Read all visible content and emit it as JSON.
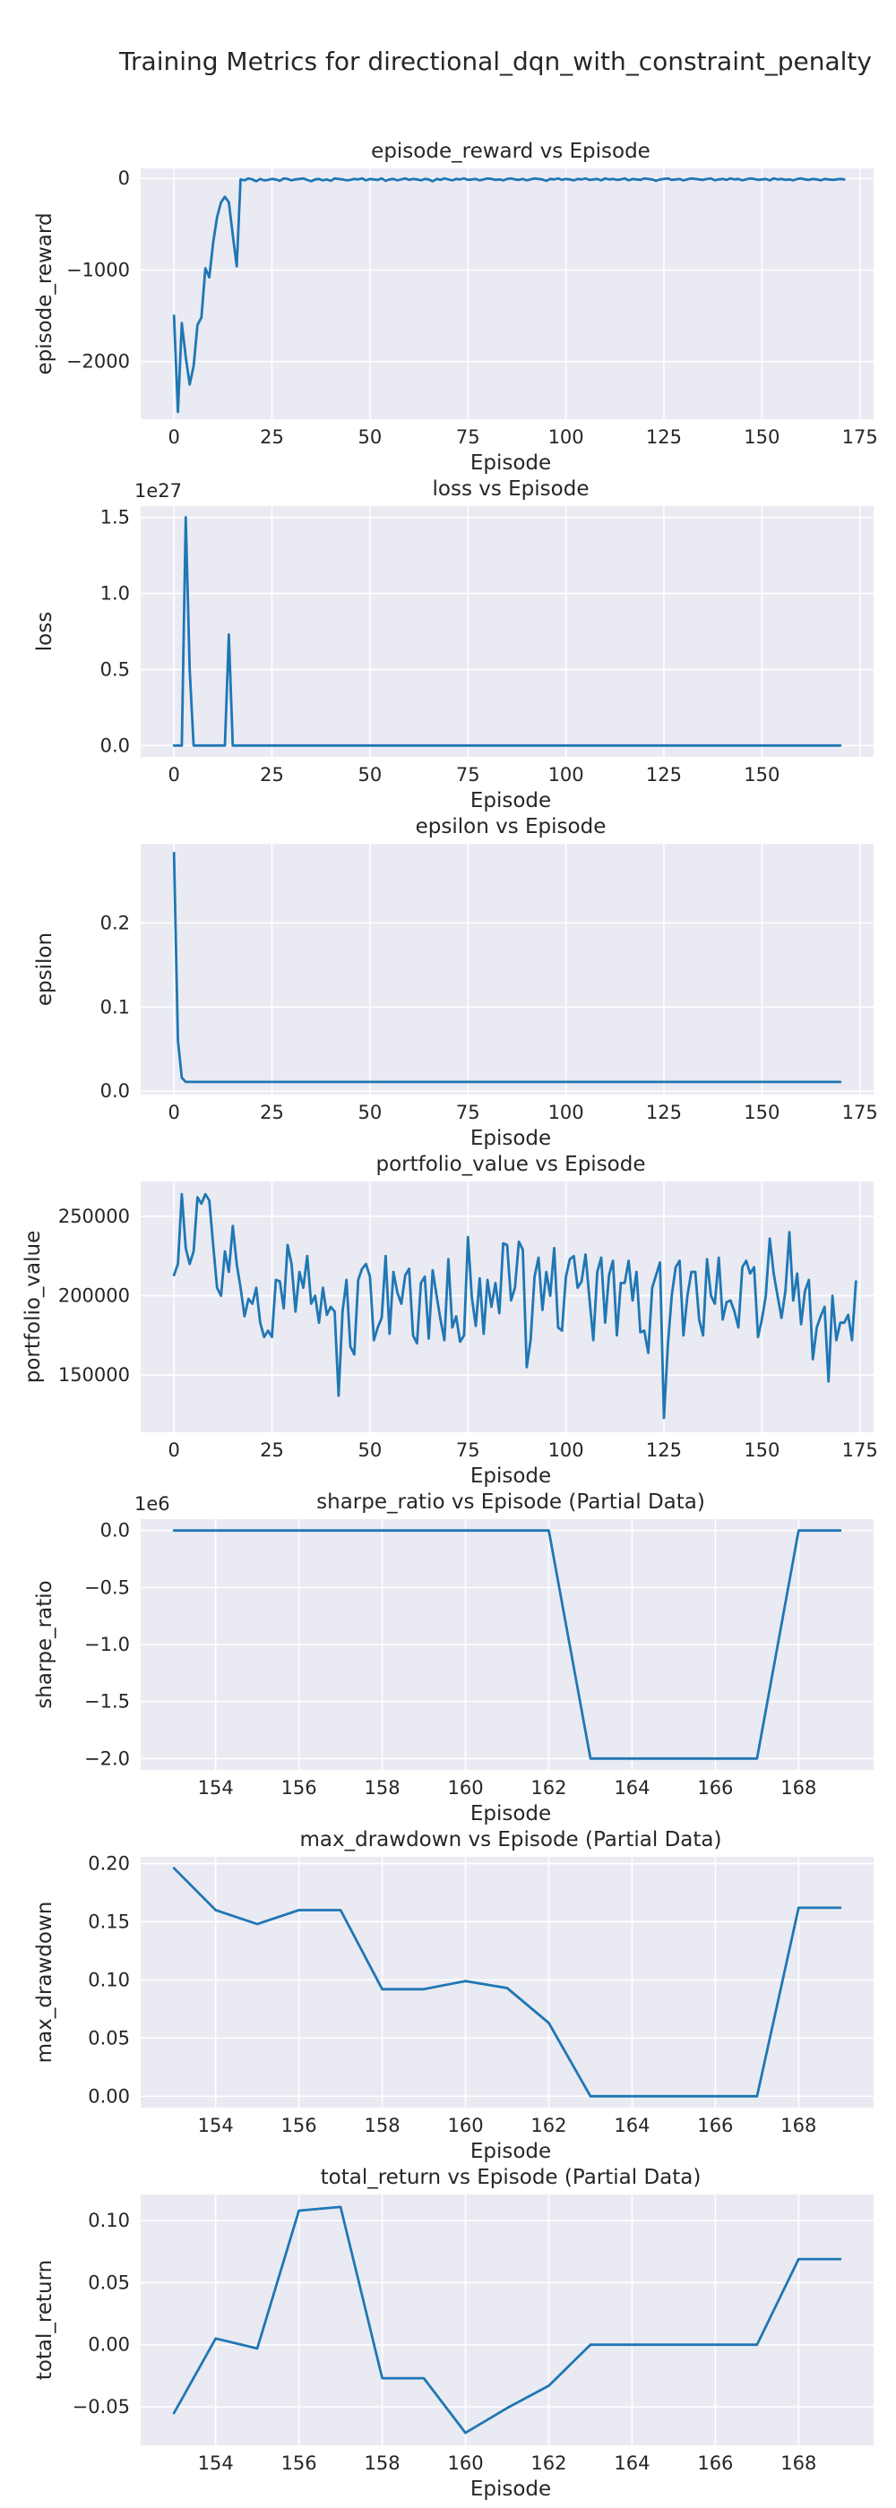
{
  "figure": {
    "title": "Training Metrics for directional_dqn_with_constraint_penalty"
  },
  "colors": {
    "series": "#1f77b4",
    "background": "#eaeaf2",
    "grid": "#ffffff",
    "text": "#262626"
  },
  "chart_data": [
    {
      "type": "line",
      "title": "episode_reward vs Episode",
      "xlabel": "Episode",
      "ylabel": "episode_reward",
      "xlim": [
        -8.5,
        178.5
      ],
      "ylim": [
        -2630,
        110
      ],
      "xticks": [
        0,
        25,
        50,
        75,
        100,
        125,
        150,
        175
      ],
      "yticks": [
        0,
        -1000,
        -2000
      ],
      "ytick_labels": [
        "0",
        "−1000",
        "−2000"
      ],
      "offset_text": "",
      "x_start": 0,
      "values": [
        -1500,
        -2550,
        -1580,
        -1950,
        -2250,
        -2050,
        -1600,
        -1520,
        -980,
        -1080,
        -700,
        -420,
        -260,
        -200,
        -260,
        -620,
        -960,
        -10,
        -20,
        0,
        -10,
        -30,
        -5,
        -20,
        -15,
        -5,
        -10,
        -25,
        0,
        -5,
        -20,
        -10,
        -5,
        0,
        -15,
        -30,
        -10,
        -5,
        -20,
        -10,
        -25,
        0,
        -5,
        -10,
        -20,
        -15,
        -5,
        -10,
        0,
        -20,
        -5,
        -10,
        -15,
        0,
        -25,
        -10,
        -5,
        -20,
        -10,
        0,
        -15,
        -5,
        -10,
        -20,
        -5,
        -10,
        -30,
        -5,
        -15,
        0,
        -10,
        -20,
        -5,
        -10,
        0,
        -15,
        -10,
        -5,
        -20,
        -10,
        0,
        -5,
        -15,
        -10,
        -20,
        -5,
        0,
        -10,
        -15,
        -5,
        -20,
        -10,
        0,
        -5,
        -10,
        -25,
        -5,
        -10,
        0,
        -15,
        -5,
        -10,
        -20,
        -5,
        -10,
        0,
        -15,
        -10,
        -5,
        -20,
        0,
        -10,
        -5,
        -15,
        -10,
        0,
        -20,
        -5,
        -10,
        -15,
        0,
        -5,
        -10,
        -25,
        -10,
        -5,
        0,
        -15,
        -10,
        -5,
        -20,
        -10,
        0,
        -5,
        -10,
        -15,
        -5,
        0,
        -20,
        -10,
        -5,
        -15,
        0,
        -10,
        -5,
        -20,
        -10,
        0,
        -5,
        -15,
        -10,
        -5,
        -20,
        0,
        -10,
        -5,
        -15,
        -10,
        -20,
        -5,
        0,
        -10,
        -15,
        -5,
        -10,
        -20,
        -5,
        -10,
        -15,
        -10,
        -5,
        -10
      ]
    },
    {
      "type": "line",
      "title": "loss vs Episode",
      "xlabel": "Episode",
      "ylabel": "loss",
      "xlim": [
        -8.5,
        178.5
      ],
      "ylim": [
        -0.075,
        1.575
      ],
      "xticks": [
        0,
        25,
        50,
        75,
        100,
        125,
        150,
        175
      ],
      "xtick_labels": [
        "0",
        "25",
        "50",
        "75",
        "100",
        "125",
        "150",
        ""
      ],
      "yticks": [
        0,
        0.5,
        1.0,
        1.5
      ],
      "ytick_labels": [
        "0.0",
        "0.5",
        "1.0",
        "1.5"
      ],
      "offset_text": "1e27",
      "x_start": 0,
      "points": [
        [
          0,
          0
        ],
        [
          2,
          0
        ],
        [
          3,
          1.5
        ],
        [
          4,
          0.5
        ],
        [
          5,
          0
        ],
        [
          13,
          0
        ],
        [
          14,
          0.73
        ],
        [
          15,
          0
        ],
        [
          170,
          0
        ]
      ]
    },
    {
      "type": "line",
      "title": "epsilon vs Episode",
      "xlabel": "Episode",
      "ylabel": "epsilon",
      "xlim": [
        -8.5,
        178.5
      ],
      "ylim": [
        -0.004,
        0.294
      ],
      "xticks": [
        0,
        25,
        50,
        75,
        100,
        125,
        150,
        175
      ],
      "yticks": [
        0,
        0.1,
        0.2
      ],
      "ytick_labels": [
        "0.0",
        "0.1",
        "0.2"
      ],
      "offset_text": "",
      "x_start": 0,
      "points": [
        [
          0,
          0.283
        ],
        [
          1,
          0.06
        ],
        [
          2,
          0.016
        ],
        [
          3,
          0.011
        ],
        [
          170,
          0.011
        ]
      ]
    },
    {
      "type": "line",
      "title": "portfolio_value vs Episode",
      "xlabel": "Episode",
      "ylabel": "portfolio_value",
      "xlim": [
        -8.5,
        178.5
      ],
      "ylim": [
        114000,
        272000
      ],
      "xticks": [
        0,
        25,
        50,
        75,
        100,
        125,
        150,
        175
      ],
      "yticks": [
        150000,
        200000,
        250000
      ],
      "ytick_labels": [
        "150000",
        "200000",
        "250000"
      ],
      "offset_text": "",
      "x_start": 0,
      "values": [
        213000,
        220000,
        264000,
        230000,
        220000,
        228000,
        262000,
        258000,
        264000,
        260000,
        232000,
        205000,
        200000,
        228000,
        215000,
        244000,
        220000,
        205000,
        187000,
        198000,
        195000,
        205000,
        183000,
        174000,
        178000,
        174000,
        210000,
        209000,
        192000,
        232000,
        220000,
        190000,
        215000,
        205000,
        225000,
        195000,
        200000,
        183000,
        205000,
        188000,
        193000,
        190000,
        137000,
        190000,
        210000,
        168000,
        163000,
        210000,
        217000,
        220000,
        212000,
        172000,
        180000,
        186000,
        225000,
        176000,
        215000,
        202000,
        195000,
        213000,
        217000,
        175000,
        170000,
        208000,
        212000,
        173000,
        216000,
        200000,
        185000,
        172000,
        223000,
        180000,
        187000,
        171000,
        175000,
        237000,
        199000,
        181000,
        211000,
        176000,
        210000,
        193000,
        208000,
        189000,
        233000,
        232000,
        197000,
        205000,
        234000,
        229000,
        155000,
        172000,
        212000,
        224000,
        191000,
        215000,
        200000,
        230000,
        180000,
        178000,
        212000,
        223000,
        225000,
        205000,
        209000,
        226000,
        198000,
        172000,
        215000,
        224000,
        183000,
        213000,
        222000,
        175000,
        208000,
        208000,
        222000,
        197000,
        215000,
        177000,
        178000,
        164000,
        205000,
        213000,
        221000,
        123000,
        168000,
        200000,
        218000,
        222000,
        175000,
        200000,
        215000,
        215000,
        185000,
        175000,
        223000,
        200000,
        195000,
        224000,
        185000,
        196000,
        197000,
        190000,
        180000,
        218000,
        222000,
        214000,
        218000,
        174000,
        185000,
        200000,
        236000,
        214000,
        200000,
        186000,
        203000,
        240000,
        197000,
        214000,
        182000,
        203000,
        210000,
        160000,
        180000,
        187000,
        193000,
        146000,
        200000,
        172000,
        183000,
        183000,
        188000,
        172000,
        209000
      ]
    },
    {
      "type": "line",
      "title": "sharpe_ratio vs Episode (Partial Data)",
      "xlabel": "Episode",
      "ylabel": "sharpe_ratio",
      "xlim": [
        152.2,
        169.8
      ],
      "ylim": [
        -2.1,
        0.1
      ],
      "xticks": [
        154,
        156,
        158,
        160,
        162,
        164,
        166,
        168
      ],
      "yticks": [
        0,
        -0.5,
        -1.0,
        -1.5,
        -2.0
      ],
      "ytick_labels": [
        "0.0",
        "−0.5",
        "−1.0",
        "−1.5",
        "−2.0"
      ],
      "offset_text": "1e6",
      "x": [
        153,
        154,
        155,
        156,
        157,
        158,
        159,
        160,
        161,
        162,
        163,
        164,
        165,
        166,
        167,
        168,
        169
      ],
      "values": [
        0,
        0,
        0,
        0,
        0,
        0,
        0,
        0,
        0,
        0,
        -2.0,
        -2.0,
        -2.0,
        -2.0,
        -2.0,
        0,
        0
      ]
    },
    {
      "type": "line",
      "title": "max_drawdown vs Episode (Partial Data)",
      "xlabel": "Episode",
      "ylabel": "max_drawdown",
      "xlim": [
        152.2,
        169.8
      ],
      "ylim": [
        -0.0098,
        0.2058
      ],
      "xticks": [
        154,
        156,
        158,
        160,
        162,
        164,
        166,
        168
      ],
      "yticks": [
        0,
        0.05,
        0.1,
        0.15,
        0.2
      ],
      "ytick_labels": [
        "0.00",
        "0.05",
        "0.10",
        "0.15",
        "0.20"
      ],
      "offset_text": "",
      "x": [
        153,
        154,
        155,
        156,
        157,
        158,
        159,
        160,
        161,
        162,
        163,
        164,
        165,
        166,
        167,
        168,
        169
      ],
      "values": [
        0.196,
        0.16,
        0.148,
        0.16,
        0.16,
        0.092,
        0.092,
        0.099,
        0.093,
        0.063,
        0,
        0,
        0,
        0,
        0,
        0.162,
        0.162
      ]
    },
    {
      "type": "line",
      "title": "total_return vs Episode (Partial Data)",
      "xlabel": "Episode",
      "ylabel": "total_return",
      "xlim": [
        152.2,
        169.8
      ],
      "ylim": [
        -0.081,
        0.121
      ],
      "xticks": [
        154,
        156,
        158,
        160,
        162,
        164,
        166,
        168
      ],
      "yticks": [
        -0.05,
        0,
        0.05,
        0.1
      ],
      "ytick_labels": [
        "−0.05",
        "0.00",
        "0.05",
        "0.10"
      ],
      "offset_text": "",
      "x": [
        153,
        154,
        155,
        156,
        157,
        158,
        159,
        160,
        161,
        162,
        163,
        164,
        165,
        166,
        167,
        168,
        169
      ],
      "values": [
        -0.055,
        0.005,
        -0.003,
        0.108,
        0.111,
        -0.027,
        -0.027,
        -0.071,
        -0.051,
        -0.033,
        0,
        0,
        0,
        0,
        0,
        0.069,
        0.069
      ]
    }
  ]
}
